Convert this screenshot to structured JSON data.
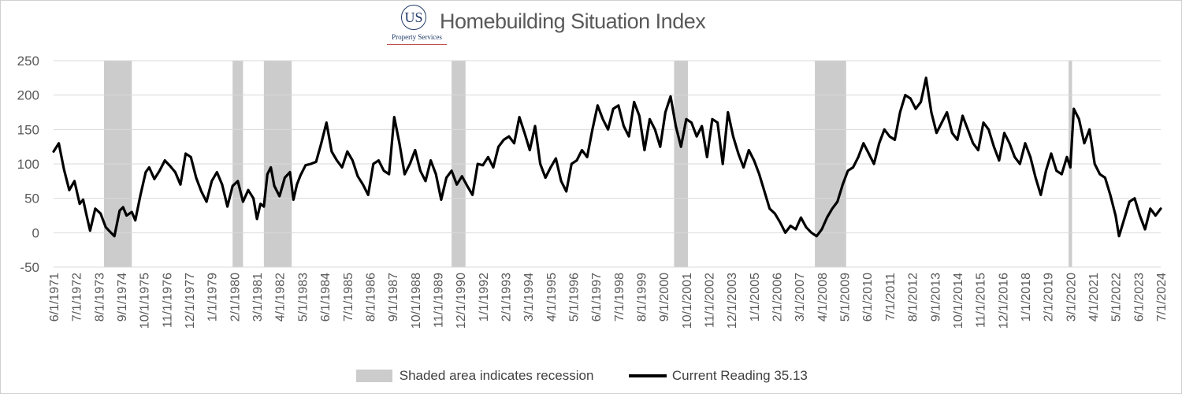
{
  "title": "Homebuilding Situation Index",
  "logo": {
    "initials": "US",
    "subtitle": "Property Services"
  },
  "legend": {
    "recession_label": "Shaded area indicates recession",
    "line_label": "Current Reading 35.13"
  },
  "colors": {
    "line": "#000000",
    "recession": "#cccccc",
    "grid": "#d9d9d9",
    "axis_text": "#595959"
  },
  "chart_data": {
    "type": "line",
    "title": "Homebuilding Situation Index",
    "ylim": [
      -50,
      250
    ],
    "yticks": [
      -50,
      0,
      50,
      100,
      150,
      200,
      250
    ],
    "xlim": [
      "1971-06",
      "2024-07"
    ],
    "grid": true,
    "legend_position": "bottom",
    "xtick_labels": [
      "6/1/1971",
      "7/1/1972",
      "8/1/1973",
      "9/1/1974",
      "10/1/1975",
      "11/1/1976",
      "12/1/1977",
      "1/1/1979",
      "2/1/1980",
      "3/1/1981",
      "4/1/1982",
      "5/1/1983",
      "6/1/1984",
      "7/1/1985",
      "8/1/1986",
      "9/1/1987",
      "10/1/1988",
      "11/1/1989",
      "12/1/1990",
      "1/1/1992",
      "2/1/1993",
      "3/1/1994",
      "4/1/1995",
      "5/1/1996",
      "6/1/1997",
      "7/1/1998",
      "8/1/1999",
      "9/1/2000",
      "10/1/2001",
      "11/1/2002",
      "12/1/2003",
      "1/1/2005",
      "2/1/2006",
      "3/1/2007",
      "4/1/2008",
      "5/1/2009",
      "6/1/2010",
      "7/1/2011",
      "8/1/2012",
      "9/1/2013",
      "10/1/2014",
      "11/1/2015",
      "12/1/2016",
      "1/1/2018",
      "2/1/2019",
      "3/1/2020",
      "4/1/2021",
      "5/1/2022",
      "6/1/2023",
      "7/1/2024"
    ],
    "recessions": [
      {
        "start": "1973-11",
        "end": "1975-03"
      },
      {
        "start": "1980-01",
        "end": "1980-07"
      },
      {
        "start": "1981-07",
        "end": "1982-11"
      },
      {
        "start": "1990-07",
        "end": "1991-03"
      },
      {
        "start": "2001-03",
        "end": "2001-11"
      },
      {
        "start": "2007-12",
        "end": "2009-06"
      },
      {
        "start": "2020-02",
        "end": "2020-04"
      }
    ],
    "series": [
      {
        "name": "Current Reading 35.13",
        "points": [
          [
            "1971-06",
            118
          ],
          [
            "1971-09",
            130
          ],
          [
            "1971-12",
            92
          ],
          [
            "1972-03",
            62
          ],
          [
            "1972-06",
            75
          ],
          [
            "1972-09",
            42
          ],
          [
            "1972-11",
            48
          ],
          [
            "1973-01",
            25
          ],
          [
            "1973-03",
            3
          ],
          [
            "1973-06",
            35
          ],
          [
            "1973-09",
            28
          ],
          [
            "1973-12",
            8
          ],
          [
            "1974-03",
            0
          ],
          [
            "1974-05",
            -5
          ],
          [
            "1974-08",
            32
          ],
          [
            "1974-10",
            37
          ],
          [
            "1974-12",
            25
          ],
          [
            "1975-03",
            30
          ],
          [
            "1975-05",
            18
          ],
          [
            "1975-08",
            55
          ],
          [
            "1975-11",
            88
          ],
          [
            "1976-01",
            95
          ],
          [
            "1976-04",
            78
          ],
          [
            "1976-07",
            90
          ],
          [
            "1976-10",
            105
          ],
          [
            "1977-01",
            97
          ],
          [
            "1977-04",
            88
          ],
          [
            "1977-07",
            70
          ],
          [
            "1977-10",
            115
          ],
          [
            "1978-01",
            110
          ],
          [
            "1978-04",
            80
          ],
          [
            "1978-07",
            60
          ],
          [
            "1978-10",
            45
          ],
          [
            "1979-01",
            75
          ],
          [
            "1979-04",
            88
          ],
          [
            "1979-07",
            70
          ],
          [
            "1979-10",
            38
          ],
          [
            "1980-01",
            68
          ],
          [
            "1980-04",
            75
          ],
          [
            "1980-07",
            45
          ],
          [
            "1980-10",
            62
          ],
          [
            "1981-01",
            50
          ],
          [
            "1981-03",
            20
          ],
          [
            "1981-05",
            42
          ],
          [
            "1981-07",
            38
          ],
          [
            "1981-09",
            85
          ],
          [
            "1981-11",
            95
          ],
          [
            "1982-01",
            68
          ],
          [
            "1982-04",
            53
          ],
          [
            "1982-07",
            80
          ],
          [
            "1982-10",
            88
          ],
          [
            "1982-12",
            48
          ],
          [
            "1983-02",
            70
          ],
          [
            "1983-04",
            83
          ],
          [
            "1983-07",
            98
          ],
          [
            "1983-10",
            100
          ],
          [
            "1984-01",
            103
          ],
          [
            "1984-04",
            130
          ],
          [
            "1984-07",
            160
          ],
          [
            "1984-10",
            118
          ],
          [
            "1985-01",
            105
          ],
          [
            "1985-04",
            95
          ],
          [
            "1985-07",
            118
          ],
          [
            "1985-10",
            105
          ],
          [
            "1986-01",
            82
          ],
          [
            "1986-04",
            70
          ],
          [
            "1986-07",
            55
          ],
          [
            "1986-10",
            100
          ],
          [
            "1987-01",
            105
          ],
          [
            "1987-04",
            90
          ],
          [
            "1987-07",
            85
          ],
          [
            "1987-10",
            168
          ],
          [
            "1988-01",
            130
          ],
          [
            "1988-04",
            85
          ],
          [
            "1988-07",
            100
          ],
          [
            "1988-10",
            120
          ],
          [
            "1989-01",
            90
          ],
          [
            "1989-04",
            75
          ],
          [
            "1989-07",
            105
          ],
          [
            "1989-10",
            85
          ],
          [
            "1990-01",
            48
          ],
          [
            "1990-04",
            80
          ],
          [
            "1990-07",
            90
          ],
          [
            "1990-10",
            70
          ],
          [
            "1991-01",
            82
          ],
          [
            "1991-04",
            68
          ],
          [
            "1991-07",
            55
          ],
          [
            "1991-10",
            100
          ],
          [
            "1992-01",
            98
          ],
          [
            "1992-04",
            110
          ],
          [
            "1992-07",
            95
          ],
          [
            "1992-10",
            125
          ],
          [
            "1993-01",
            135
          ],
          [
            "1993-04",
            140
          ],
          [
            "1993-07",
            130
          ],
          [
            "1993-10",
            168
          ],
          [
            "1994-01",
            145
          ],
          [
            "1994-04",
            120
          ],
          [
            "1994-07",
            155
          ],
          [
            "1994-10",
            100
          ],
          [
            "1995-01",
            80
          ],
          [
            "1995-04",
            95
          ],
          [
            "1995-07",
            108
          ],
          [
            "1995-10",
            75
          ],
          [
            "1996-01",
            60
          ],
          [
            "1996-04",
            100
          ],
          [
            "1996-07",
            105
          ],
          [
            "1996-10",
            120
          ],
          [
            "1997-01",
            110
          ],
          [
            "1997-04",
            150
          ],
          [
            "1997-07",
            185
          ],
          [
            "1997-10",
            165
          ],
          [
            "1998-01",
            150
          ],
          [
            "1998-04",
            180
          ],
          [
            "1998-07",
            185
          ],
          [
            "1998-10",
            155
          ],
          [
            "1999-01",
            140
          ],
          [
            "1999-04",
            190
          ],
          [
            "1999-07",
            170
          ],
          [
            "1999-10",
            120
          ],
          [
            "2000-01",
            165
          ],
          [
            "2000-04",
            150
          ],
          [
            "2000-07",
            125
          ],
          [
            "2000-10",
            175
          ],
          [
            "2001-01",
            198
          ],
          [
            "2001-04",
            155
          ],
          [
            "2001-07",
            125
          ],
          [
            "2001-10",
            165
          ],
          [
            "2002-01",
            160
          ],
          [
            "2002-04",
            140
          ],
          [
            "2002-07",
            155
          ],
          [
            "2002-10",
            110
          ],
          [
            "2003-01",
            165
          ],
          [
            "2003-04",
            160
          ],
          [
            "2003-07",
            100
          ],
          [
            "2003-10",
            175
          ],
          [
            "2004-01",
            140
          ],
          [
            "2004-04",
            115
          ],
          [
            "2004-07",
            95
          ],
          [
            "2004-10",
            120
          ],
          [
            "2005-01",
            105
          ],
          [
            "2005-04",
            85
          ],
          [
            "2005-07",
            60
          ],
          [
            "2005-10",
            35
          ],
          [
            "2006-01",
            28
          ],
          [
            "2006-04",
            15
          ],
          [
            "2006-07",
            0
          ],
          [
            "2006-10",
            10
          ],
          [
            "2007-01",
            5
          ],
          [
            "2007-04",
            22
          ],
          [
            "2007-07",
            8
          ],
          [
            "2007-10",
            0
          ],
          [
            "2008-01",
            -5
          ],
          [
            "2008-04",
            5
          ],
          [
            "2008-07",
            22
          ],
          [
            "2008-10",
            35
          ],
          [
            "2009-01",
            45
          ],
          [
            "2009-04",
            70
          ],
          [
            "2009-07",
            90
          ],
          [
            "2009-10",
            95
          ],
          [
            "2010-01",
            110
          ],
          [
            "2010-04",
            130
          ],
          [
            "2010-07",
            115
          ],
          [
            "2010-10",
            100
          ],
          [
            "2011-01",
            130
          ],
          [
            "2011-04",
            150
          ],
          [
            "2011-07",
            140
          ],
          [
            "2011-10",
            135
          ],
          [
            "2012-01",
            175
          ],
          [
            "2012-04",
            200
          ],
          [
            "2012-07",
            195
          ],
          [
            "2012-10",
            180
          ],
          [
            "2013-01",
            190
          ],
          [
            "2013-04",
            225
          ],
          [
            "2013-07",
            175
          ],
          [
            "2013-10",
            145
          ],
          [
            "2014-01",
            160
          ],
          [
            "2014-04",
            175
          ],
          [
            "2014-07",
            145
          ],
          [
            "2014-10",
            135
          ],
          [
            "2015-01",
            170
          ],
          [
            "2015-04",
            150
          ],
          [
            "2015-07",
            130
          ],
          [
            "2015-10",
            120
          ],
          [
            "2016-01",
            160
          ],
          [
            "2016-04",
            150
          ],
          [
            "2016-07",
            125
          ],
          [
            "2016-10",
            105
          ],
          [
            "2017-01",
            145
          ],
          [
            "2017-04",
            130
          ],
          [
            "2017-07",
            110
          ],
          [
            "2017-10",
            100
          ],
          [
            "2018-01",
            130
          ],
          [
            "2018-04",
            110
          ],
          [
            "2018-07",
            80
          ],
          [
            "2018-10",
            55
          ],
          [
            "2019-01",
            90
          ],
          [
            "2019-04",
            115
          ],
          [
            "2019-07",
            90
          ],
          [
            "2019-10",
            85
          ],
          [
            "2020-01",
            110
          ],
          [
            "2020-03",
            95
          ],
          [
            "2020-05",
            180
          ],
          [
            "2020-08",
            165
          ],
          [
            "2020-11",
            130
          ],
          [
            "2021-02",
            150
          ],
          [
            "2021-05",
            100
          ],
          [
            "2021-08",
            85
          ],
          [
            "2021-11",
            80
          ],
          [
            "2022-02",
            55
          ],
          [
            "2022-05",
            25
          ],
          [
            "2022-07",
            -5
          ],
          [
            "2022-10",
            20
          ],
          [
            "2023-01",
            45
          ],
          [
            "2023-04",
            50
          ],
          [
            "2023-07",
            25
          ],
          [
            "2023-10",
            5
          ],
          [
            "2024-01",
            35
          ],
          [
            "2024-04",
            25
          ],
          [
            "2024-07",
            35
          ]
        ]
      }
    ]
  }
}
